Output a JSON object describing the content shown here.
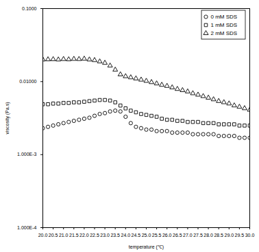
{
  "chart_data": {
    "type": "scatter",
    "x_label": "temperature (℃)",
    "y_label": "viscosity (Pa.s)",
    "log": "y",
    "legend": "top-right",
    "xlim": [
      20,
      30
    ],
    "ylim": [
      0.0001,
      0.1
    ],
    "xticks": [
      {
        "value": 20,
        "label": "20.0"
      },
      {
        "value": 20.5,
        "label": "20.5"
      },
      {
        "value": 21,
        "label": "21.0"
      },
      {
        "value": 21.5,
        "label": "21.5"
      },
      {
        "value": 22,
        "label": "22.0"
      },
      {
        "value": 22.5,
        "label": "22.5"
      },
      {
        "value": 23,
        "label": "23.0"
      },
      {
        "value": 23.5,
        "label": "23.5"
      },
      {
        "value": 24,
        "label": "24.0"
      },
      {
        "value": 24.5,
        "label": "24.5"
      },
      {
        "value": 25,
        "label": "25.0"
      },
      {
        "value": 25.5,
        "label": "25.5"
      },
      {
        "value": 26,
        "label": "26.0"
      },
      {
        "value": 26.5,
        "label": "26.5"
      },
      {
        "value": 27,
        "label": "27.0"
      },
      {
        "value": 27.5,
        "label": "27.5"
      },
      {
        "value": 28,
        "label": "28.0"
      },
      {
        "value": 28.5,
        "label": "28.5"
      },
      {
        "value": 29,
        "label": "29.0"
      },
      {
        "value": 29.5,
        "label": "29.5"
      },
      {
        "value": 30,
        "label": "30.0"
      }
    ],
    "yticks": [
      {
        "value": 0.1,
        "label": "0.1000"
      },
      {
        "value": 0.01,
        "label": "0.01000"
      },
      {
        "value": 0.001,
        "label": "1.000E-3"
      },
      {
        "value": 0.0001,
        "label": "1.000E-4"
      }
    ],
    "x": [
      20,
      20.25,
      20.5,
      20.75,
      21,
      21.25,
      21.5,
      21.75,
      22,
      22.25,
      22.5,
      22.75,
      23,
      23.25,
      23.5,
      23.75,
      24,
      24.25,
      24.5,
      24.75,
      25,
      25.25,
      25.5,
      25.75,
      26,
      26.25,
      26.5,
      26.75,
      27,
      27.25,
      27.5,
      27.75,
      28,
      28.25,
      28.5,
      28.75,
      29,
      29.25,
      29.5,
      29.75,
      30
    ],
    "series": [
      {
        "name": "0 mM SDS",
        "color": "#000000",
        "marker": "circle",
        "values": [
          0.0023,
          0.0024,
          0.0025,
          0.0026,
          0.0027,
          0.0028,
          0.0029,
          0.003,
          0.0031,
          0.0032,
          0.0034,
          0.0036,
          0.0037,
          0.0039,
          0.004,
          0.0039,
          0.0033,
          0.0027,
          0.0024,
          0.0023,
          0.0022,
          0.0022,
          0.0021,
          0.0021,
          0.0021,
          0.002,
          0.002,
          0.002,
          0.002,
          0.0019,
          0.0019,
          0.0019,
          0.0019,
          0.0019,
          0.0018,
          0.0018,
          0.0018,
          0.0018,
          0.0017,
          0.0017,
          0.0017
        ]
      },
      {
        "name": "1 mM SDS",
        "color": "#000000",
        "marker": "square",
        "values": [
          0.0049,
          0.0049,
          0.005,
          0.005,
          0.0051,
          0.0051,
          0.0052,
          0.0052,
          0.0053,
          0.0054,
          0.0055,
          0.0056,
          0.0056,
          0.0055,
          0.0052,
          0.0047,
          0.0043,
          0.004,
          0.0038,
          0.0036,
          0.0035,
          0.0034,
          0.0033,
          0.0031,
          0.003,
          0.003,
          0.0029,
          0.0029,
          0.0028,
          0.0028,
          0.0028,
          0.0027,
          0.0027,
          0.0027,
          0.0026,
          0.0026,
          0.0026,
          0.0026,
          0.0025,
          0.0025,
          0.0025
        ]
      },
      {
        "name": "2 mM SDS",
        "color": "#000000",
        "marker": "triangle",
        "values": [
          0.02,
          0.0201,
          0.0202,
          0.02,
          0.0203,
          0.0201,
          0.0204,
          0.0203,
          0.0205,
          0.02,
          0.0196,
          0.0188,
          0.018,
          0.0165,
          0.0145,
          0.0125,
          0.0118,
          0.0114,
          0.011,
          0.0106,
          0.0102,
          0.0098,
          0.0094,
          0.009,
          0.0087,
          0.0083,
          0.0079,
          0.0076,
          0.0073,
          0.0069,
          0.0066,
          0.0063,
          0.006,
          0.0057,
          0.0054,
          0.0052,
          0.005,
          0.0047,
          0.0045,
          0.0043,
          0.0041
        ]
      }
    ]
  }
}
